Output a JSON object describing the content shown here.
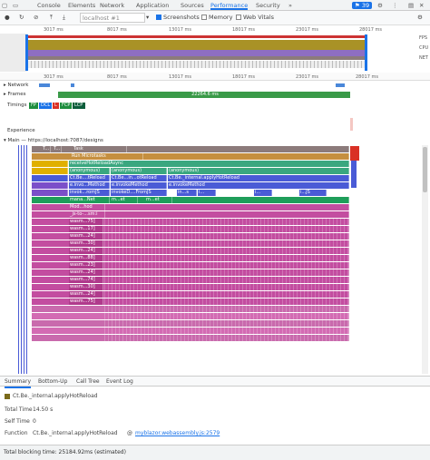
{
  "tabs": [
    "Console",
    "Elements",
    "Network",
    "Application",
    "Sources",
    "Performance",
    "Security"
  ],
  "tabs_more": "»",
  "badge_count": "39",
  "toolbar": {
    "target": "localhost #1",
    "screenshots_label": "Screenshots",
    "memory_label": "Memory",
    "webvitals_label": "Web Vitals"
  },
  "overview": {
    "ruler_top": [
      "3017 ms",
      "8017 ms",
      "13017 ms",
      "18017 ms",
      "23017 ms",
      "28017 ms"
    ],
    "side_labels": [
      "FPS",
      "CPU",
      "NET"
    ],
    "ruler_main": [
      "3017 ms",
      "8017 ms",
      "13017 ms",
      "18017 ms",
      "23017 ms",
      "28017 ms"
    ]
  },
  "tracks": {
    "network": "Network",
    "frames": "Frames",
    "frames_value": "22264.6 ms",
    "timings": "Timings",
    "timing_badges": [
      "FP",
      "DCL",
      "L",
      "FCP",
      "LCP"
    ],
    "experience": "Experience",
    "main": "Main — https://localhost:7087/designs"
  },
  "flame": {
    "task": "Task",
    "microtasks": "Run Microtasks",
    "receive": "receiveHotReloadAsync",
    "anon": [
      "(anonymous)",
      "(anonymous)",
      "(anonymous)"
    ],
    "row4": [
      "Ct.Be....tReload",
      "Ct.Be...in...otReload",
      "Ct.Be._internal.applyHotReload"
    ],
    "row5": [
      "e.invo...Method",
      "e.invokeMethod",
      "e.invokeMethod"
    ],
    "row6": [
      "invok...romJS",
      "invokeD....FromJS",
      "in...s",
      "i...",
      "i...",
      "i...JS"
    ],
    "row7": [
      "mana...Net",
      "m...et",
      "m...et"
    ],
    "row8": "Mod...hod",
    "row9": "_js-to-...sm:i",
    "wasm": [
      "wasm...75]",
      "wasm...17]",
      "wasm...24]",
      "wasm...30]",
      "wasm...24]",
      "wasm...88]",
      "wasm...23]",
      "wasm...24]",
      "wasm...74]",
      "wasm...30]",
      "wasm...24]",
      "wasm...75]"
    ],
    "small_T": "T...",
    "small_T2": "T..."
  },
  "bottom_tabs": [
    "Summary",
    "Bottom-Up",
    "Call Tree",
    "Event Log"
  ],
  "summary": {
    "title": "Ct.Be._internal.applyHotReload",
    "total_time_label": "Total Time",
    "total_time": "14.50 s",
    "self_time_label": "Self Time",
    "self_time": "0",
    "initiator_label": "Function",
    "function_name": "Ct.Be._internal.applyHotReload",
    "at": "@",
    "link": "myblazor.webassembly.js:2579"
  },
  "status": "Total blocking time: 25184.92ms (estimated)",
  "colors": {
    "accent": "#1a73e8",
    "task": "#8c7b7b",
    "microtask": "#c58f3f",
    "yellow": "#e0b000",
    "teal": "#3aa77f",
    "blue": "#4a5bd6",
    "purple": "#7b4fc9",
    "pink": "#c34da0",
    "green": "#1e8e3e"
  }
}
